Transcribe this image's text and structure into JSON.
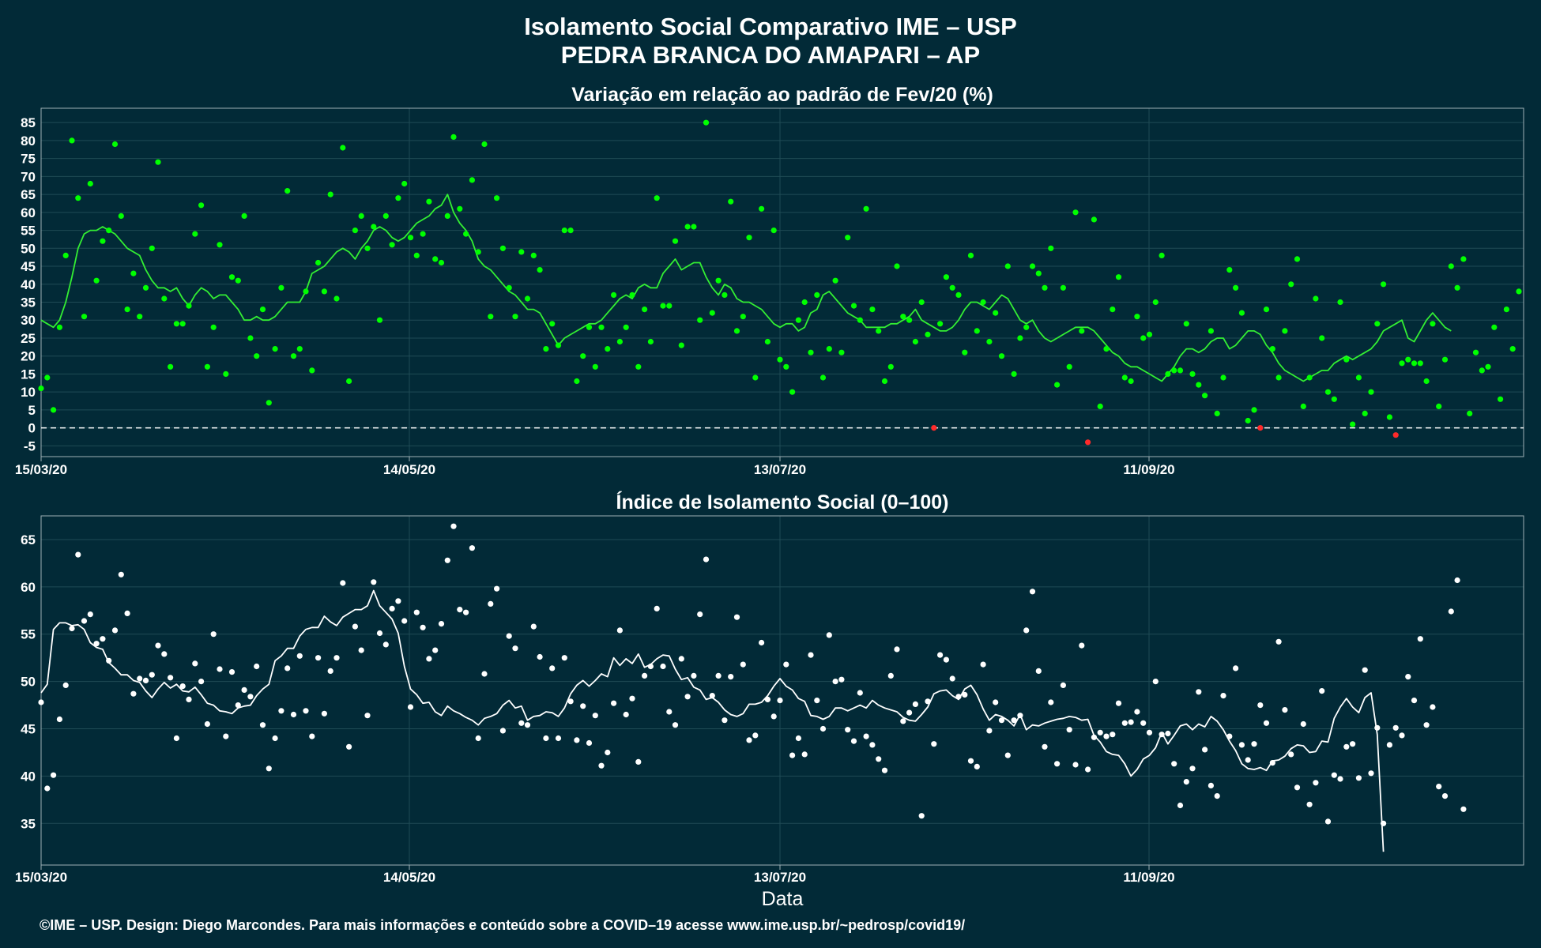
{
  "header": {
    "title_line1": "Isolamento Social Comparativo IME – USP",
    "title_line2": "PEDRA BRANCA DO AMAPARI – AP"
  },
  "footer": {
    "credit": "©IME – USP. Design: Diego Marcondes. Para mais informações e conteúdo sobre a COVID–19 acesse www.ime.usp.br/~pedrosp/covid19/"
  },
  "colors": {
    "background": "#022a37",
    "grid": "#1f4b55",
    "panel_border": "#9fb0b5",
    "variation_points": "#00ff00",
    "variation_line": "#33ee33",
    "negative_points": "#ff2a2a",
    "index_points": "#ffffff",
    "index_line": "#ffffff"
  },
  "chart_data": [
    {
      "type": "scatter",
      "title": "Variação em relação ao padrão de Fev/20 (%)",
      "xlabel": "",
      "ylabel": "",
      "x_start": "15/03/20",
      "x_end": "12/11/20",
      "x_tick_labels": [
        "15/03/20",
        "14/05/20",
        "13/07/20",
        "11/09/20"
      ],
      "ylim": [
        -8,
        89
      ],
      "y_ticks": [
        -5,
        0,
        5,
        10,
        15,
        20,
        25,
        30,
        35,
        40,
        45,
        50,
        55,
        60,
        65,
        70,
        75,
        80,
        85
      ],
      "reference_line": 0,
      "grid": true,
      "series": [
        {
          "kind": "points",
          "values": [
            11,
            14,
            5,
            28,
            48,
            80,
            64,
            31,
            68,
            41,
            52,
            55,
            79,
            59,
            33,
            43,
            31,
            39,
            50,
            74,
            36,
            17,
            29,
            29,
            34,
            54,
            62,
            17,
            28,
            51,
            15,
            42,
            41,
            59,
            25,
            20,
            33,
            7,
            22,
            39,
            66,
            20,
            22,
            38,
            16,
            46,
            38,
            65,
            36,
            78,
            13,
            55,
            59,
            50,
            56,
            30,
            59,
            51,
            64,
            68,
            53,
            48,
            54,
            63,
            47,
            46,
            59,
            81,
            61,
            54,
            69,
            49,
            79,
            31,
            64,
            50,
            39,
            31,
            49,
            36,
            48,
            44,
            22,
            29,
            23,
            55,
            55,
            13,
            20,
            28,
            17,
            28,
            22,
            37,
            24,
            28,
            37,
            17,
            33,
            24,
            64,
            34,
            34,
            52,
            23,
            56,
            56,
            30,
            85,
            32,
            41,
            37,
            63,
            27,
            31,
            53,
            14,
            61,
            24,
            55,
            19,
            17,
            10,
            30,
            35,
            21,
            37,
            14,
            22,
            41,
            21,
            53,
            34,
            30,
            61,
            33,
            27,
            13,
            17,
            45,
            31,
            30,
            24,
            35,
            26,
            0,
            29,
            42,
            39,
            37,
            21,
            48,
            27,
            35,
            24,
            32,
            20,
            45,
            15,
            25,
            28,
            45,
            43,
            39,
            50,
            12,
            39,
            17,
            60,
            27,
            -4,
            58,
            6,
            22,
            33,
            42,
            14,
            13,
            31,
            25,
            26,
            35,
            48,
            15,
            16,
            16,
            29,
            15,
            12,
            9,
            27,
            4,
            14,
            44,
            39,
            32,
            2,
            5,
            0,
            33,
            22,
            14,
            27,
            40,
            47,
            6,
            14,
            36,
            25,
            10,
            8,
            35,
            19,
            1,
            14,
            4,
            10,
            29,
            40,
            3,
            -2,
            18,
            19,
            18,
            18,
            13,
            29,
            6,
            19,
            45,
            39,
            47,
            4,
            21,
            16,
            17,
            28,
            8,
            33,
            22,
            38
          ]
        },
        {
          "kind": "moving_average",
          "values": [
            30,
            29,
            28,
            30,
            35,
            42,
            50,
            54,
            55,
            55,
            56,
            55,
            54,
            52,
            50,
            49,
            48,
            44,
            41,
            39,
            39,
            38,
            39,
            36,
            34,
            37,
            39,
            38,
            36,
            37,
            37,
            35,
            33,
            30,
            30,
            31,
            30,
            30,
            31,
            33,
            35,
            35,
            35,
            38,
            43,
            44,
            45,
            47,
            49,
            50,
            49,
            47,
            50,
            52,
            55,
            56,
            55,
            53,
            52,
            53,
            55,
            57,
            58,
            59,
            61,
            62,
            65,
            60,
            57,
            55,
            52,
            47,
            45,
            44,
            42,
            40,
            38,
            37,
            35,
            33,
            33,
            32,
            29,
            26,
            23,
            25,
            26,
            27,
            28,
            29,
            29,
            30,
            32,
            34,
            36,
            37,
            36,
            39,
            40,
            39,
            39,
            43,
            45,
            47,
            44,
            45,
            46,
            46,
            42,
            39,
            37,
            40,
            39,
            36,
            35,
            35,
            34,
            33,
            31,
            29,
            28,
            29,
            29,
            27,
            28,
            32,
            33,
            37,
            38,
            36,
            34,
            32,
            31,
            30,
            28,
            28,
            28,
            28,
            29,
            29,
            30,
            31,
            33,
            30,
            29,
            28,
            27,
            27,
            28,
            30,
            33,
            35,
            35,
            34,
            33,
            35,
            37,
            36,
            33,
            30,
            29,
            30,
            27,
            25,
            24,
            25,
            26,
            27,
            28,
            28,
            28,
            27,
            25,
            23,
            21,
            20,
            18,
            17,
            17,
            16,
            15,
            14,
            13,
            15,
            17,
            20,
            22,
            22,
            21,
            22,
            24,
            25,
            25,
            22,
            23,
            25,
            27,
            27,
            26,
            23,
            21,
            18,
            16,
            15,
            14,
            13,
            14,
            15,
            16,
            16,
            18,
            19,
            20,
            19,
            20,
            21,
            22,
            24,
            27,
            28,
            29,
            30,
            25,
            24,
            27,
            30,
            32,
            30,
            28,
            27
          ]
        }
      ]
    },
    {
      "type": "scatter",
      "title": "Índice de Isolamento Social (0–100)",
      "xlabel": "Data",
      "ylabel": "",
      "x_start": "15/03/20",
      "x_end": "12/11/20",
      "x_tick_labels": [
        "15/03/20",
        "14/05/20",
        "13/07/20",
        "11/09/20"
      ],
      "ylim": [
        30.6,
        67.5
      ],
      "y_ticks": [
        35,
        40,
        45,
        50,
        55,
        60,
        65
      ],
      "grid": true,
      "series": [
        {
          "kind": "points",
          "values": [
            47.8,
            38.7,
            40.1,
            46,
            49.6,
            55.6,
            63.4,
            56.4,
            57.1,
            54,
            54.5,
            52.2,
            55.4,
            61.3,
            57.2,
            48.7,
            50.3,
            50.1,
            50.7,
            53.8,
            52.9,
            50.4,
            44,
            49.5,
            48.1,
            51.9,
            50,
            45.5,
            55,
            51.3,
            44.2,
            51,
            47.5,
            49.1,
            48.4,
            51.6,
            45.4,
            40.8,
            44,
            46.9,
            51.4,
            46.5,
            52.7,
            46.9,
            44.2,
            52.5,
            46.6,
            51.1,
            52.5,
            60.4,
            43.1,
            55.8,
            53.3,
            46.4,
            60.5,
            55.1,
            53.9,
            57.7,
            58.5,
            56.4,
            47.3,
            57.3,
            55.7,
            52.4,
            53.3,
            56.1,
            62.8,
            66.4,
            57.6,
            57.3,
            64.1,
            44,
            50.8,
            58.2,
            59.8,
            44.8,
            54.8,
            53.5,
            45.6,
            45.4,
            55.8,
            52.6,
            44,
            51.4,
            44,
            52.5,
            47.9,
            43.8,
            47.4,
            43.5,
            46.4,
            41.1,
            42.5,
            47.7,
            55.4,
            46.5,
            48.2,
            41.5,
            50.6,
            51.6,
            57.7,
            51.6,
            46.8,
            45.4,
            52.4,
            48.4,
            50.6,
            57.1,
            62.9,
            48.5,
            50.6,
            45.9,
            50.5,
            56.8,
            51.8,
            43.8,
            44.3,
            54.1,
            48.1,
            46.3,
            48,
            51.8,
            42.2,
            44,
            42.3,
            52.8,
            48,
            45,
            54.9,
            50,
            50.2,
            44.9,
            43.7,
            48.8,
            44.2,
            43.3,
            41.8,
            40.6,
            50.6,
            53.4,
            45.8,
            46.7,
            47.6,
            35.8,
            47.9,
            43.4,
            52.8,
            52.3,
            50.3,
            48.4,
            48.6,
            41.6,
            41,
            51.8,
            44.8,
            47.8,
            45.9,
            42.2,
            45.9,
            46.4,
            55.4,
            59.5,
            51.1,
            43.1,
            47.8,
            41.3,
            49.6,
            44.9,
            41.2,
            53.8,
            40.7,
            44.1,
            44.6,
            44.2,
            44.4,
            47.7,
            45.6,
            45.7,
            46.8,
            45.6,
            44.6,
            50,
            44.4,
            44.5,
            41.3,
            36.9,
            39.4,
            40.8,
            48.9,
            42.8,
            39,
            37.9,
            48.5,
            44.2,
            51.4,
            43.3,
            41.7,
            43.4,
            47.5,
            45.6,
            41.4,
            54.2,
            47,
            42.3,
            38.8,
            45.5,
            37,
            39.3,
            49,
            35.2,
            40.1,
            39.7,
            43.1,
            43.4,
            39.8,
            51.2,
            40.3,
            45.1,
            35,
            43.3,
            45.1,
            44.3,
            50.5,
            48,
            54.5,
            45.4,
            47.3,
            38.9,
            37.9,
            57.4,
            60.7,
            36.5
          ]
        },
        {
          "kind": "moving_average",
          "values": [
            48.8,
            49.7,
            55.5,
            56.2,
            56.2,
            55.9,
            56,
            55.5,
            54.1,
            53.6,
            53.4,
            52,
            51.4,
            50.7,
            50.7,
            50.1,
            49.9,
            49,
            48.3,
            49.2,
            49.9,
            49.3,
            49.7,
            49,
            48.9,
            49.4,
            48.6,
            47.7,
            47.5,
            46.9,
            46.8,
            46.6,
            47.2,
            47.4,
            47.5,
            48.5,
            49.2,
            49.7,
            52.2,
            52.7,
            53.5,
            53.5,
            54.8,
            55.5,
            55.7,
            55.7,
            56.9,
            56.3,
            55.9,
            56.8,
            57.2,
            57.6,
            57.6,
            58,
            59.6,
            58,
            57.3,
            56.6,
            55.1,
            51.6,
            49.2,
            48.6,
            47.7,
            47.8,
            46.8,
            46.4,
            47.4,
            46.9,
            46.6,
            46.2,
            45.9,
            45.4,
            46.1,
            46.3,
            46.6,
            47.5,
            48,
            47.2,
            47.4,
            45.9,
            46.3,
            46.4,
            46.8,
            46.7,
            46.3,
            47.2,
            48.7,
            49.6,
            50.1,
            49.5,
            50.1,
            50.8,
            50.5,
            52.5,
            51.7,
            52.4,
            51.9,
            52.9,
            51.5,
            51.8,
            52.4,
            52.8,
            52.7,
            51.3,
            50.2,
            50.4,
            49.4,
            49.1,
            48.1,
            48.3,
            47.8,
            47,
            46.5,
            46.3,
            46.6,
            47.6,
            47.6,
            47.8,
            48.5,
            49.5,
            50.3,
            49.5,
            49.1,
            48.2,
            47.9,
            46.4,
            46.3,
            46,
            46.3,
            47.2,
            47.2,
            46.9,
            47.2,
            47.5,
            47.2,
            48,
            47.5,
            47.2,
            47,
            46.8,
            46.2,
            45.9,
            45.8,
            46.5,
            47.3,
            48.7,
            49,
            49.1,
            48.5,
            48.1,
            49.2,
            49.6,
            48.6,
            47.1,
            45.9,
            46.5,
            46.3,
            45.9,
            45.3,
            46.5,
            44.9,
            45.4,
            45.3,
            45.6,
            45.8,
            46,
            46.1,
            46.3,
            46.2,
            45.9,
            46,
            44.3,
            43.6,
            42.6,
            42.3,
            42.2,
            41.3,
            40,
            40.7,
            41.8,
            42.2,
            43,
            44.6,
            43.4,
            44.3,
            45.3,
            45.5,
            44.9,
            45.5,
            45.2,
            46.3,
            45.8,
            44.9,
            43.7,
            42.7,
            41.3,
            40.8,
            40.7,
            40.9,
            40.6,
            41.6,
            41.7,
            42.1,
            42.9,
            43.3,
            43.2,
            42.5,
            42.6,
            43.7,
            43.6,
            46.1,
            47.3,
            48.2,
            47.3,
            46.7,
            48.3,
            48.8,
            44.4,
            32
          ]
        }
      ]
    }
  ]
}
